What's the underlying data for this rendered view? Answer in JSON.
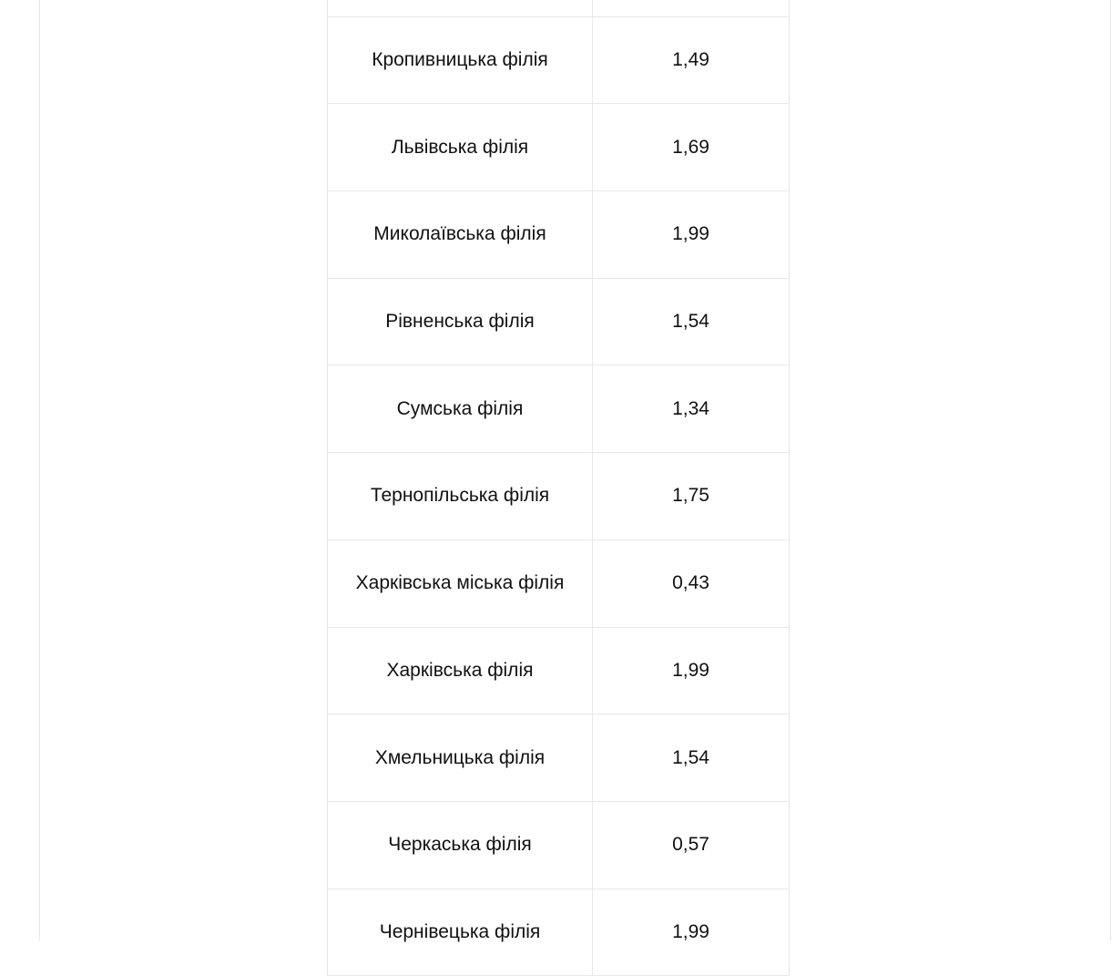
{
  "table": {
    "rows": [
      {
        "branch": "",
        "value": ""
      },
      {
        "branch": "Кропивницька філія",
        "value": "1,49"
      },
      {
        "branch": "Львівська філія",
        "value": "1,69"
      },
      {
        "branch": "Миколаївська філія",
        "value": "1,99"
      },
      {
        "branch": "Рівненська філія",
        "value": "1,54"
      },
      {
        "branch": "Сумська філія",
        "value": "1,34"
      },
      {
        "branch": "Тернопільська філія",
        "value": "1,75"
      },
      {
        "branch": "Харківська міська філія",
        "value": "0,43"
      },
      {
        "branch": "Харківська філія",
        "value": "1,99"
      },
      {
        "branch": "Хмельницька філія",
        "value": "1,54"
      },
      {
        "branch": "Черкаська філія",
        "value": "0,57"
      },
      {
        "branch": "Чернівецька філія",
        "value": "1,99"
      }
    ]
  }
}
